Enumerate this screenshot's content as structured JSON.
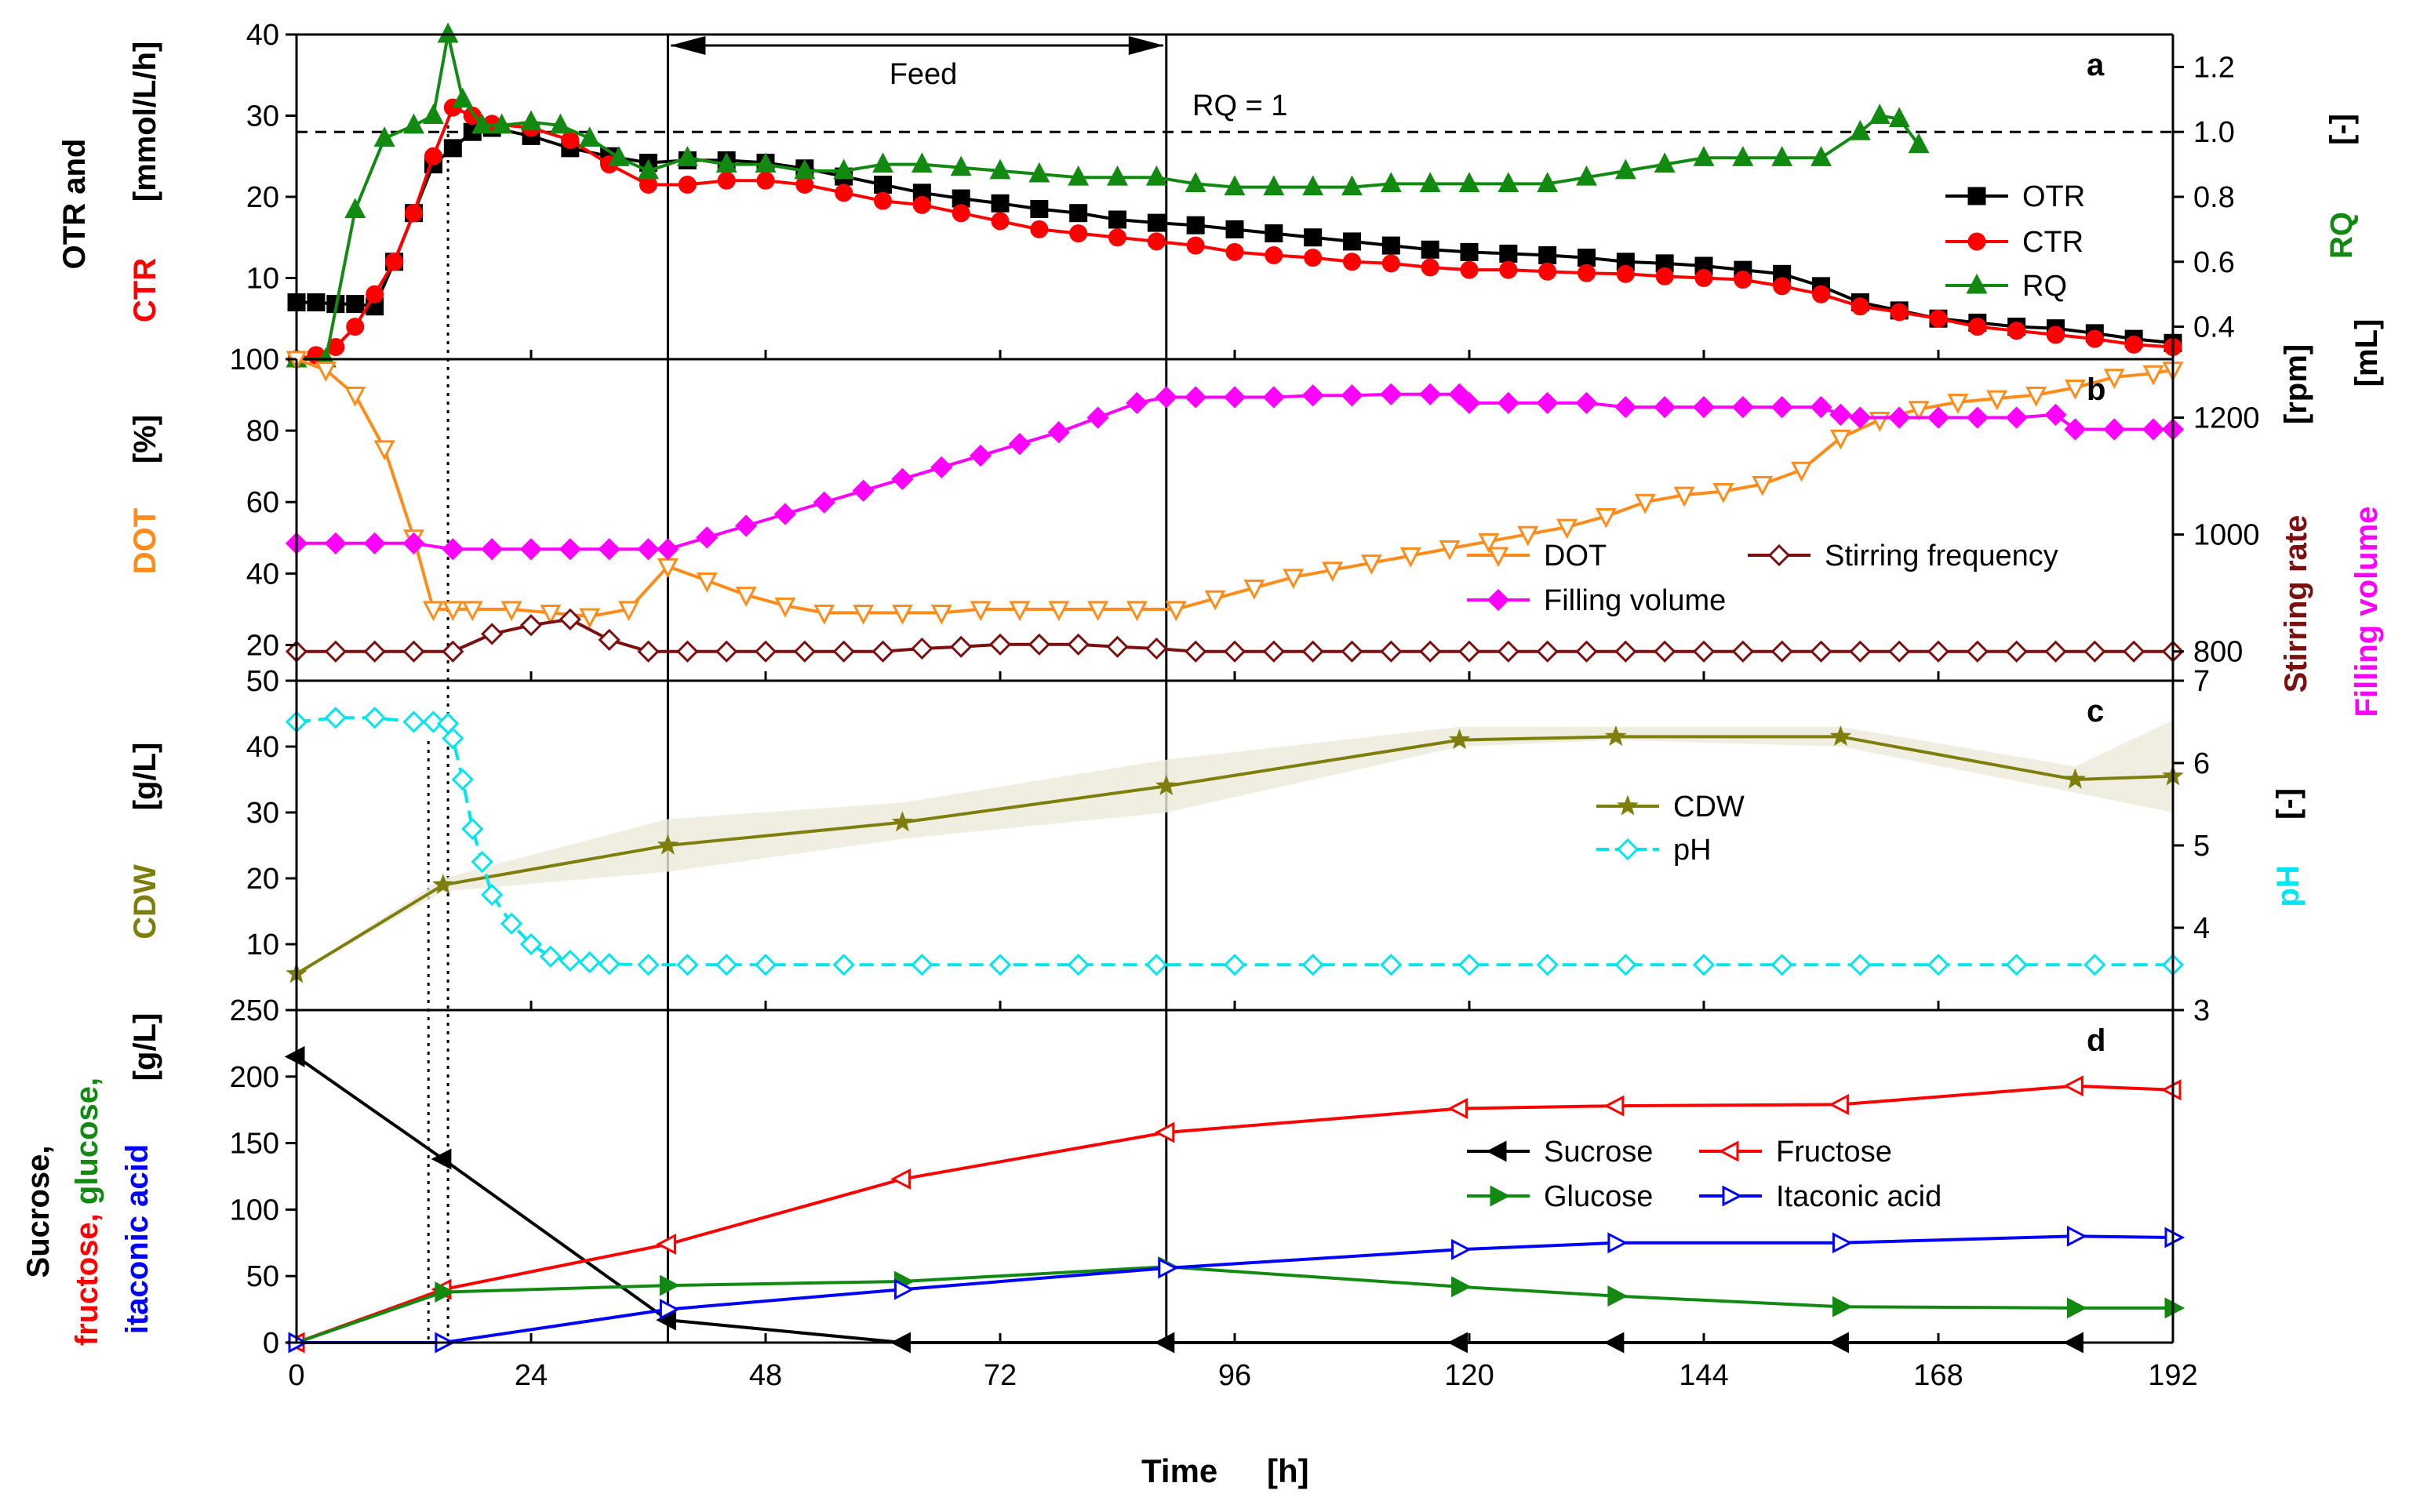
{
  "x_axis": {
    "label": "Time",
    "unit": "[h]",
    "range": [
      0,
      192
    ],
    "ticks": [
      0,
      24,
      48,
      72,
      96,
      120,
      144,
      168,
      192
    ]
  },
  "annotations": {
    "feed_label": "Feed",
    "feed_start_h": 38,
    "feed_end_h": 89,
    "rq_reference_label": "RQ = 1",
    "rq_reference_value": 1.0,
    "dotted_times_h": [
      15.5,
      13.5
    ]
  },
  "colors": {
    "otr": "#000000",
    "ctr": "#ff0000",
    "rq": "#128a12",
    "dot": "#ff8c1a",
    "filling": "#ff00ff",
    "stirring": "#7a1010",
    "cdw": "#7e7e0c",
    "ph": "#00e5ee",
    "sucrose": "#000000",
    "fructose": "#ff0000",
    "glucose": "#128a12",
    "itaconic": "#0000ff"
  },
  "chart_data": [
    {
      "panel": "a",
      "type": "line",
      "left_axis": {
        "lines": [
          "OTR and",
          "CTR"
        ],
        "unit": "[mmol/L/h]",
        "range": [
          0,
          40
        ],
        "ticks": [
          10,
          20,
          30,
          40
        ]
      },
      "right_axis": {
        "label": "RQ",
        "unit": "[-]",
        "range": [
          0.3,
          1.3
        ],
        "ticks": [
          0.4,
          0.6,
          0.8,
          1.0,
          1.2
        ]
      },
      "series": [
        {
          "name": "OTR",
          "axis": "left",
          "marker": "square",
          "x": [
            0,
            2,
            4,
            6,
            8,
            10,
            12,
            14,
            16,
            18,
            20,
            24,
            28,
            32,
            36,
            40,
            44,
            48,
            52,
            56,
            60,
            64,
            68,
            72,
            76,
            80,
            84,
            88,
            92,
            96,
            100,
            104,
            108,
            112,
            116,
            120,
            124,
            128,
            132,
            136,
            140,
            144,
            148,
            152,
            156,
            160,
            164,
            168,
            172,
            176,
            180,
            184,
            188,
            192
          ],
          "y": [
            7,
            7,
            6.8,
            6.8,
            6.5,
            12,
            18,
            24,
            26,
            28,
            28.5,
            27.5,
            26,
            25,
            24.2,
            24.5,
            24.5,
            24.2,
            23.5,
            22.5,
            21.5,
            20.5,
            19.8,
            19.2,
            18.5,
            18,
            17.2,
            16.8,
            16.5,
            16,
            15.5,
            15,
            14.5,
            14,
            13.5,
            13.2,
            13,
            12.8,
            12.5,
            12,
            11.8,
            11.5,
            11,
            10.5,
            9,
            7,
            6,
            5,
            4.5,
            4,
            3.8,
            3.2,
            2.5,
            2
          ]
        },
        {
          "name": "CTR",
          "axis": "left",
          "marker": "circle",
          "x": [
            0,
            2,
            4,
            6,
            8,
            10,
            12,
            14,
            16,
            18,
            20,
            24,
            28,
            32,
            36,
            40,
            44,
            48,
            52,
            56,
            60,
            64,
            68,
            72,
            76,
            80,
            84,
            88,
            92,
            96,
            100,
            104,
            108,
            112,
            116,
            120,
            124,
            128,
            132,
            136,
            140,
            144,
            148,
            152,
            156,
            160,
            164,
            168,
            172,
            176,
            180,
            184,
            188,
            192
          ],
          "y": [
            0,
            0.5,
            1.5,
            4,
            8,
            12,
            18,
            25,
            31,
            30,
            29,
            28.5,
            27,
            24,
            21.5,
            21.5,
            22,
            22,
            21.5,
            20.5,
            19.5,
            19,
            18,
            17,
            16,
            15.5,
            15,
            14.5,
            14,
            13.2,
            12.8,
            12.5,
            12,
            11.8,
            11.3,
            11,
            11,
            10.8,
            10.6,
            10.5,
            10.2,
            10,
            9.8,
            9,
            8,
            6.5,
            5.8,
            5,
            4,
            3.5,
            3,
            2.5,
            1.8,
            1.5
          ]
        },
        {
          "name": "RQ",
          "axis": "right",
          "marker": "triangle",
          "x": [
            0,
            3,
            6,
            9,
            12,
            14,
            15.5,
            17,
            19,
            21,
            24,
            27,
            30,
            33,
            36,
            40,
            44,
            48,
            52,
            56,
            60,
            64,
            68,
            72,
            76,
            80,
            84,
            88,
            92,
            96,
            100,
            104,
            108,
            112,
            116,
            120,
            124,
            128,
            132,
            136,
            140,
            144,
            148,
            152,
            156,
            160,
            162,
            164,
            166
          ],
          "y": [
            0.3,
            0.3,
            0.76,
            0.98,
            1.02,
            1.05,
            1.3,
            1.1,
            1.02,
            1.02,
            1.03,
            1.02,
            0.98,
            0.92,
            0.88,
            0.92,
            0.9,
            0.9,
            0.88,
            0.88,
            0.9,
            0.9,
            0.89,
            0.88,
            0.87,
            0.86,
            0.86,
            0.86,
            0.84,
            0.83,
            0.83,
            0.83,
            0.83,
            0.84,
            0.84,
            0.84,
            0.84,
            0.84,
            0.86,
            0.88,
            0.9,
            0.92,
            0.92,
            0.92,
            0.92,
            1.0,
            1.05,
            1.04,
            0.96
          ]
        }
      ]
    },
    {
      "panel": "b",
      "type": "line",
      "left_axis": {
        "label": "DOT",
        "unit": "[%]",
        "range": [
          10,
          100
        ],
        "ticks": [
          20,
          40,
          60,
          80,
          100
        ]
      },
      "right_axis": {
        "lines": [
          "Stirring rate",
          "Filling volume"
        ],
        "unit_lines": [
          "[rpm]",
          "[mL]"
        ],
        "range": [
          750,
          1300
        ],
        "ticks": [
          800,
          1000,
          1200
        ]
      },
      "series": [
        {
          "name": "DOT",
          "axis": "left",
          "marker": "triangle-down",
          "x": [
            0,
            3,
            6,
            9,
            12,
            14,
            16,
            18,
            22,
            26,
            30,
            34,
            38,
            42,
            46,
            50,
            54,
            58,
            62,
            66,
            70,
            74,
            78,
            82,
            86,
            90,
            94,
            98,
            102,
            106,
            110,
            114,
            118,
            122,
            126,
            130,
            134,
            138,
            142,
            146,
            150,
            154,
            158,
            162,
            166,
            170,
            174,
            178,
            182,
            186,
            190,
            192
          ],
          "y": [
            100,
            97,
            90,
            75,
            50,
            30,
            30,
            30,
            30,
            29,
            28,
            30,
            42,
            38,
            34,
            31,
            29,
            29,
            29,
            29,
            30,
            30,
            30,
            30,
            30,
            30,
            33,
            36,
            39,
            41,
            43,
            45,
            47,
            49,
            51,
            53,
            56,
            60,
            62,
            63,
            65,
            69,
            78,
            83,
            86,
            88,
            89,
            90,
            92,
            95,
            96,
            97
          ]
        },
        {
          "name": "Stirring frequency",
          "axis": "right",
          "marker": "diamond-open",
          "x": [
            0,
            4,
            8,
            12,
            16,
            20,
            24,
            28,
            32,
            36,
            40,
            44,
            48,
            52,
            56,
            60,
            64,
            68,
            72,
            76,
            80,
            84,
            88,
            92,
            96,
            100,
            104,
            108,
            112,
            116,
            120,
            124,
            128,
            132,
            136,
            140,
            144,
            148,
            152,
            156,
            160,
            164,
            168,
            172,
            176,
            180,
            184,
            188,
            192
          ],
          "y": [
            800,
            800,
            800,
            800,
            800,
            830,
            845,
            855,
            820,
            800,
            800,
            800,
            800,
            800,
            800,
            800,
            805,
            808,
            812,
            812,
            812,
            808,
            805,
            800,
            800,
            800,
            800,
            800,
            800,
            800,
            800,
            800,
            800,
            800,
            800,
            800,
            800,
            800,
            800,
            800,
            800,
            800,
            800,
            800,
            800,
            800,
            800,
            800,
            800
          ]
        },
        {
          "name": "Filling volume",
          "axis": "right",
          "marker": "diamond",
          "x": [
            0,
            4,
            8,
            12,
            16,
            20,
            24,
            28,
            32,
            36,
            38,
            42,
            46,
            50,
            54,
            58,
            62,
            66,
            70,
            74,
            78,
            82,
            86,
            89,
            92,
            96,
            100,
            104,
            108,
            112,
            116,
            119,
            120,
            124,
            128,
            132,
            136,
            140,
            144,
            148,
            152,
            156,
            158,
            160,
            164,
            168,
            172,
            176,
            180,
            182,
            186,
            190,
            192
          ],
          "y": [
            985,
            985,
            985,
            985,
            975,
            975,
            975,
            975,
            975,
            975,
            975,
            995,
            1015,
            1035,
            1055,
            1075,
            1095,
            1115,
            1135,
            1155,
            1175,
            1200,
            1225,
            1235,
            1235,
            1235,
            1235,
            1238,
            1238,
            1240,
            1240,
            1240,
            1225,
            1225,
            1225,
            1225,
            1218,
            1218,
            1218,
            1218,
            1218,
            1218,
            1205,
            1200,
            1200,
            1200,
            1200,
            1200,
            1205,
            1180,
            1180,
            1180,
            1180
          ]
        }
      ]
    },
    {
      "panel": "c",
      "type": "line",
      "left_axis": {
        "label": "CDW",
        "unit": "[g/L]",
        "range": [
          0,
          50
        ],
        "ticks": [
          10,
          20,
          30,
          40,
          50
        ]
      },
      "right_axis": {
        "label": "pH",
        "unit": "[-]",
        "range": [
          3,
          7
        ],
        "ticks": [
          3,
          4,
          5,
          6,
          7
        ]
      },
      "series": [
        {
          "name": "CDW",
          "axis": "left",
          "marker": "star",
          "x": [
            0,
            15,
            38,
            62,
            89,
            119,
            135,
            158,
            182,
            192
          ],
          "y": [
            5.5,
            19,
            25,
            28.5,
            34,
            41,
            41.5,
            41.5,
            35,
            35.5
          ],
          "band_low": [
            5.5,
            18,
            21,
            26,
            30,
            40,
            41,
            40,
            33,
            30
          ],
          "band_high": [
            5.5,
            20,
            29,
            31.5,
            38,
            43,
            43,
            43,
            37,
            44
          ]
        },
        {
          "name": "pH",
          "axis": "right",
          "marker": "diamond-open",
          "x": [
            0,
            4,
            8,
            12,
            14,
            15.5,
            16,
            17,
            18,
            19,
            20,
            22,
            24,
            26,
            28,
            30,
            32,
            36,
            40,
            44,
            48,
            56,
            64,
            72,
            80,
            88,
            96,
            104,
            112,
            120,
            128,
            136,
            144,
            152,
            160,
            168,
            176,
            184,
            192
          ],
          "y": [
            6.5,
            6.55,
            6.55,
            6.5,
            6.5,
            6.48,
            6.3,
            5.8,
            5.2,
            4.8,
            4.4,
            4.05,
            3.8,
            3.65,
            3.6,
            3.58,
            3.56,
            3.55,
            3.55,
            3.55,
            3.55,
            3.55,
            3.55,
            3.55,
            3.55,
            3.55,
            3.55,
            3.55,
            3.55,
            3.55,
            3.55,
            3.55,
            3.55,
            3.55,
            3.55,
            3.55,
            3.55,
            3.55,
            3.55
          ]
        }
      ]
    },
    {
      "panel": "d",
      "type": "line",
      "left_axis": {
        "label_parts": [
          "Sucrose,",
          "fructose,",
          "glucose,",
          "itaconic acid"
        ],
        "unit": "[g/L]",
        "range": [
          0,
          250
        ],
        "ticks": [
          0,
          50,
          100,
          150,
          200,
          250
        ]
      },
      "series": [
        {
          "name": "Sucrose",
          "axis": "left",
          "marker": "triangle-left",
          "x": [
            0,
            15,
            38,
            62,
            89,
            119,
            135,
            158,
            182
          ],
          "y": [
            215,
            138,
            17,
            0,
            0,
            0,
            0,
            0,
            0
          ]
        },
        {
          "name": "Fructose",
          "axis": "left",
          "marker": "triangle-left-open",
          "x": [
            0,
            15,
            38,
            62,
            89,
            119,
            135,
            158,
            182,
            192
          ],
          "y": [
            0,
            40,
            74,
            123,
            158,
            176,
            178,
            179,
            193,
            190
          ]
        },
        {
          "name": "Glucose",
          "axis": "left",
          "marker": "triangle-right",
          "x": [
            0,
            15,
            38,
            62,
            89,
            119,
            135,
            158,
            182,
            192
          ],
          "y": [
            0,
            38,
            43,
            46,
            57,
            42,
            35,
            27,
            26,
            26
          ]
        },
        {
          "name": "Itaconic acid",
          "axis": "left",
          "marker": "triangle-right-open",
          "x": [
            0,
            15,
            38,
            62,
            89,
            119,
            135,
            158,
            182,
            192
          ],
          "y": [
            0,
            0,
            25,
            40,
            56,
            70,
            75,
            75,
            80,
            79
          ]
        }
      ]
    }
  ]
}
